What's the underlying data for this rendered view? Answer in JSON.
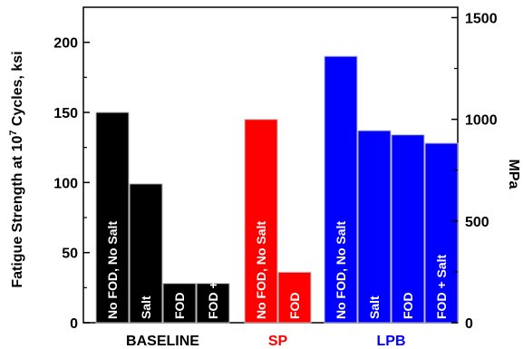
{
  "chart_data": {
    "type": "bar",
    "ylabel_parts": [
      "Fatigue Strength at 10",
      "7",
      " Cycles, ksi"
    ],
    "y2label": "MPa",
    "ylim": [
      0,
      225
    ],
    "yticks": [
      0,
      50,
      100,
      150,
      200
    ],
    "y2lim": [
      0,
      1551
    ],
    "y2ticks": [
      0,
      500,
      1000,
      1500
    ],
    "groups": [
      {
        "name": "BASELINE",
        "color": "#000000",
        "label_color": "#000000",
        "bars": [
          {
            "label": "No FOD, No Salt",
            "value": 150
          },
          {
            "label": "Salt",
            "value": 99
          },
          {
            "label": "FOD",
            "value": 28
          },
          {
            "label": "FOD + Salt",
            "value": 28
          }
        ]
      },
      {
        "name": "SP",
        "color": "#ff0000",
        "label_color": "#ff0000",
        "bars": [
          {
            "label": "No FOD, No Salt",
            "value": 145
          },
          {
            "label": "FOD",
            "value": 36
          }
        ]
      },
      {
        "name": "LPB",
        "color": "#0000ff",
        "label_color": "#0000ff",
        "bars": [
          {
            "label": "No FOD, No Salt",
            "value": 190
          },
          {
            "label": "Salt",
            "value": 137
          },
          {
            "label": "FOD",
            "value": 134
          },
          {
            "label": "FOD + Salt",
            "value": 128
          }
        ]
      }
    ]
  }
}
